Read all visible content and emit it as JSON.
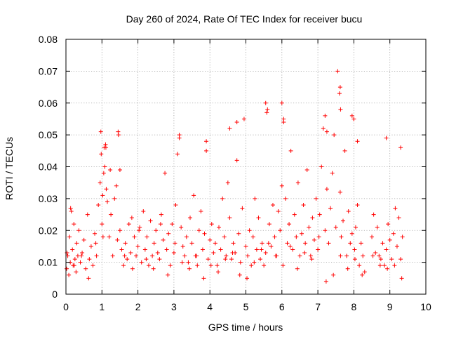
{
  "chart_data": {
    "type": "scatter",
    "title": "Day 260 of 2024, Rate Of TEC Index for receiver bucu",
    "xlabel": "GPS time / hours",
    "ylabel": "ROTI / TECUs",
    "xlim": [
      0,
      10
    ],
    "ylim": [
      0,
      0.08
    ],
    "xticks": [
      "0",
      "1",
      "2",
      "3",
      "4",
      "5",
      "6",
      "7",
      "8",
      "9",
      "10"
    ],
    "yticks": [
      "0",
      "0.01",
      "0.02",
      "0.03",
      "0.04",
      "0.05",
      "0.06",
      "0.07",
      "0.08"
    ],
    "grid": true,
    "marker": "+",
    "marker_color": "#ff0000",
    "series": [
      {
        "name": "ROTI",
        "x": [
          0.02,
          0.05,
          0.08,
          0.1,
          0.12,
          0.15,
          0.18,
          0.2,
          0.22,
          0.25,
          0.28,
          0.3,
          0.33,
          0.36,
          0.4,
          0.45,
          0.5,
          0.55,
          0.6,
          0.65,
          0.7,
          0.75,
          0.8,
          0.85,
          0.9,
          0.95,
          0.98,
          1.0,
          1.02,
          1.05,
          1.08,
          1.1,
          1.12,
          1.15,
          1.2,
          1.25,
          1.3,
          1.35,
          1.4,
          1.45,
          1.5,
          1.55,
          1.6,
          1.65,
          1.7,
          1.75,
          1.8,
          1.85,
          1.9,
          1.95,
          2.0,
          2.05,
          2.1,
          2.15,
          2.2,
          2.25,
          2.3,
          2.35,
          2.4,
          2.45,
          2.5,
          2.55,
          2.6,
          2.65,
          2.7,
          2.75,
          2.8,
          2.85,
          2.9,
          2.95,
          3.0,
          3.05,
          3.1,
          3.15,
          3.2,
          3.25,
          3.3,
          3.35,
          3.4,
          3.45,
          3.5,
          3.55,
          3.6,
          3.65,
          3.7,
          3.75,
          3.8,
          3.85,
          3.9,
          3.95,
          4.0,
          4.05,
          4.1,
          4.15,
          4.2,
          4.25,
          4.3,
          4.35,
          4.4,
          4.45,
          4.5,
          4.55,
          4.6,
          4.65,
          4.7,
          4.75,
          4.8,
          4.85,
          4.9,
          4.95,
          5.0,
          5.05,
          5.1,
          5.15,
          5.2,
          5.25,
          5.3,
          5.35,
          5.4,
          5.45,
          5.5,
          5.55,
          5.6,
          5.65,
          5.7,
          5.75,
          5.8,
          5.85,
          5.9,
          5.95,
          6.0,
          6.05,
          6.1,
          6.15,
          6.2,
          6.25,
          6.3,
          6.35,
          6.4,
          6.45,
          6.5,
          6.55,
          6.6,
          6.65,
          6.7,
          6.75,
          6.8,
          6.85,
          6.9,
          6.95,
          7.0,
          7.05,
          7.1,
          7.15,
          7.2,
          7.25,
          7.3,
          7.35,
          7.4,
          7.45,
          7.5,
          7.55,
          7.6,
          7.62,
          7.65,
          7.7,
          7.75,
          7.8,
          7.85,
          7.9,
          7.95,
          8.0,
          8.02,
          8.05,
          8.1,
          8.15,
          8.2,
          8.25,
          8.3,
          8.5,
          8.55,
          8.6,
          8.65,
          8.7,
          8.75,
          8.8,
          8.85,
          8.9,
          8.95,
          9.0,
          9.05,
          9.1,
          9.15,
          9.2,
          9.25,
          9.3,
          9.35,
          0.03,
          0.13,
          0.23,
          0.43,
          0.63,
          0.83,
          1.03,
          1.23,
          1.43,
          1.63,
          1.83,
          2.03,
          2.23,
          2.43,
          2.63,
          2.83,
          3.03,
          3.23,
          3.43,
          3.63,
          3.83,
          4.03,
          4.23,
          4.43,
          4.63,
          4.83,
          5.03,
          5.23,
          5.43,
          5.63,
          5.83,
          6.03,
          6.23,
          6.43,
          6.63,
          6.83,
          7.03,
          7.23,
          7.43,
          7.63,
          7.83,
          8.03,
          8.23,
          8.53,
          8.73,
          8.93,
          9.13,
          9.33,
          0.97,
          1.06,
          1.11,
          1.46,
          1.5,
          3.15,
          3.9,
          4.55,
          4.75,
          5.55,
          5.58,
          6.0,
          6.05,
          7.2,
          7.25,
          7.62,
          7.63,
          7.95,
          8.0,
          8.1,
          8.9,
          9.3
        ],
        "y": [
          0.008,
          0.012,
          0.006,
          0.018,
          0.01,
          0.026,
          0.014,
          0.009,
          0.022,
          0.011,
          0.007,
          0.016,
          0.012,
          0.02,
          0.01,
          0.013,
          0.017,
          0.008,
          0.025,
          0.011,
          0.015,
          0.009,
          0.019,
          0.012,
          0.028,
          0.035,
          0.044,
          0.022,
          0.031,
          0.038,
          0.04,
          0.047,
          0.033,
          0.029,
          0.018,
          0.025,
          0.012,
          0.03,
          0.034,
          0.051,
          0.02,
          0.014,
          0.009,
          0.016,
          0.011,
          0.022,
          0.013,
          0.008,
          0.018,
          0.012,
          0.015,
          0.021,
          0.01,
          0.026,
          0.014,
          0.018,
          0.009,
          0.023,
          0.012,
          0.016,
          0.02,
          0.013,
          0.011,
          0.025,
          0.017,
          0.038,
          0.014,
          0.019,
          0.009,
          0.022,
          0.013,
          0.028,
          0.044,
          0.05,
          0.021,
          0.015,
          0.012,
          0.018,
          0.01,
          0.024,
          0.016,
          0.031,
          0.012,
          0.009,
          0.02,
          0.026,
          0.014,
          0.019,
          0.048,
          0.011,
          0.017,
          0.022,
          0.013,
          0.016,
          0.009,
          0.021,
          0.014,
          0.03,
          0.018,
          0.012,
          0.035,
          0.024,
          0.011,
          0.016,
          0.013,
          0.042,
          0.019,
          0.01,
          0.027,
          0.055,
          0.015,
          0.012,
          0.02,
          0.009,
          0.018,
          0.03,
          0.014,
          0.024,
          0.011,
          0.016,
          0.009,
          0.013,
          0.058,
          0.022,
          0.015,
          0.028,
          0.018,
          0.012,
          0.026,
          0.02,
          0.034,
          0.054,
          0.03,
          0.016,
          0.022,
          0.045,
          0.014,
          0.025,
          0.018,
          0.035,
          0.012,
          0.019,
          0.028,
          0.016,
          0.039,
          0.021,
          0.012,
          0.024,
          0.017,
          0.03,
          0.014,
          0.025,
          0.04,
          0.052,
          0.02,
          0.033,
          0.016,
          0.027,
          0.038,
          0.05,
          0.021,
          0.07,
          0.063,
          0.032,
          0.018,
          0.023,
          0.045,
          0.012,
          0.026,
          0.016,
          0.019,
          0.055,
          0.014,
          0.021,
          0.028,
          0.009,
          0.016,
          0.012,
          0.007,
          0.018,
          0.025,
          0.013,
          0.021,
          0.012,
          0.011,
          0.016,
          0.009,
          0.014,
          0.022,
          0.017,
          0.011,
          0.019,
          0.027,
          0.015,
          0.024,
          0.011,
          0.018,
          0.013,
          0.027,
          0.009,
          0.012,
          0.005,
          0.016,
          0.018,
          0.039,
          0.017,
          0.012,
          0.024,
          0.02,
          0.011,
          0.008,
          0.022,
          0.006,
          0.016,
          0.01,
          0.008,
          0.012,
          0.005,
          0.009,
          0.007,
          0.011,
          0.013,
          0.006,
          0.005,
          0.01,
          0.014,
          0.016,
          0.012,
          0.009,
          0.015,
          0.008,
          0.013,
          0.011,
          0.018,
          0.004,
          0.006,
          0.012,
          0.008,
          0.011,
          0.006,
          0.012,
          0.009,
          0.008,
          0.009,
          0.005,
          0.051,
          0.046,
          0.046,
          0.05,
          0.039,
          0.049,
          0.045,
          0.052,
          0.054,
          0.06,
          0.057,
          0.06,
          0.055,
          0.056,
          0.051,
          0.065,
          0.058,
          0.056,
          0.055,
          0.048,
          0.049,
          0.046
        ]
      }
    ]
  }
}
